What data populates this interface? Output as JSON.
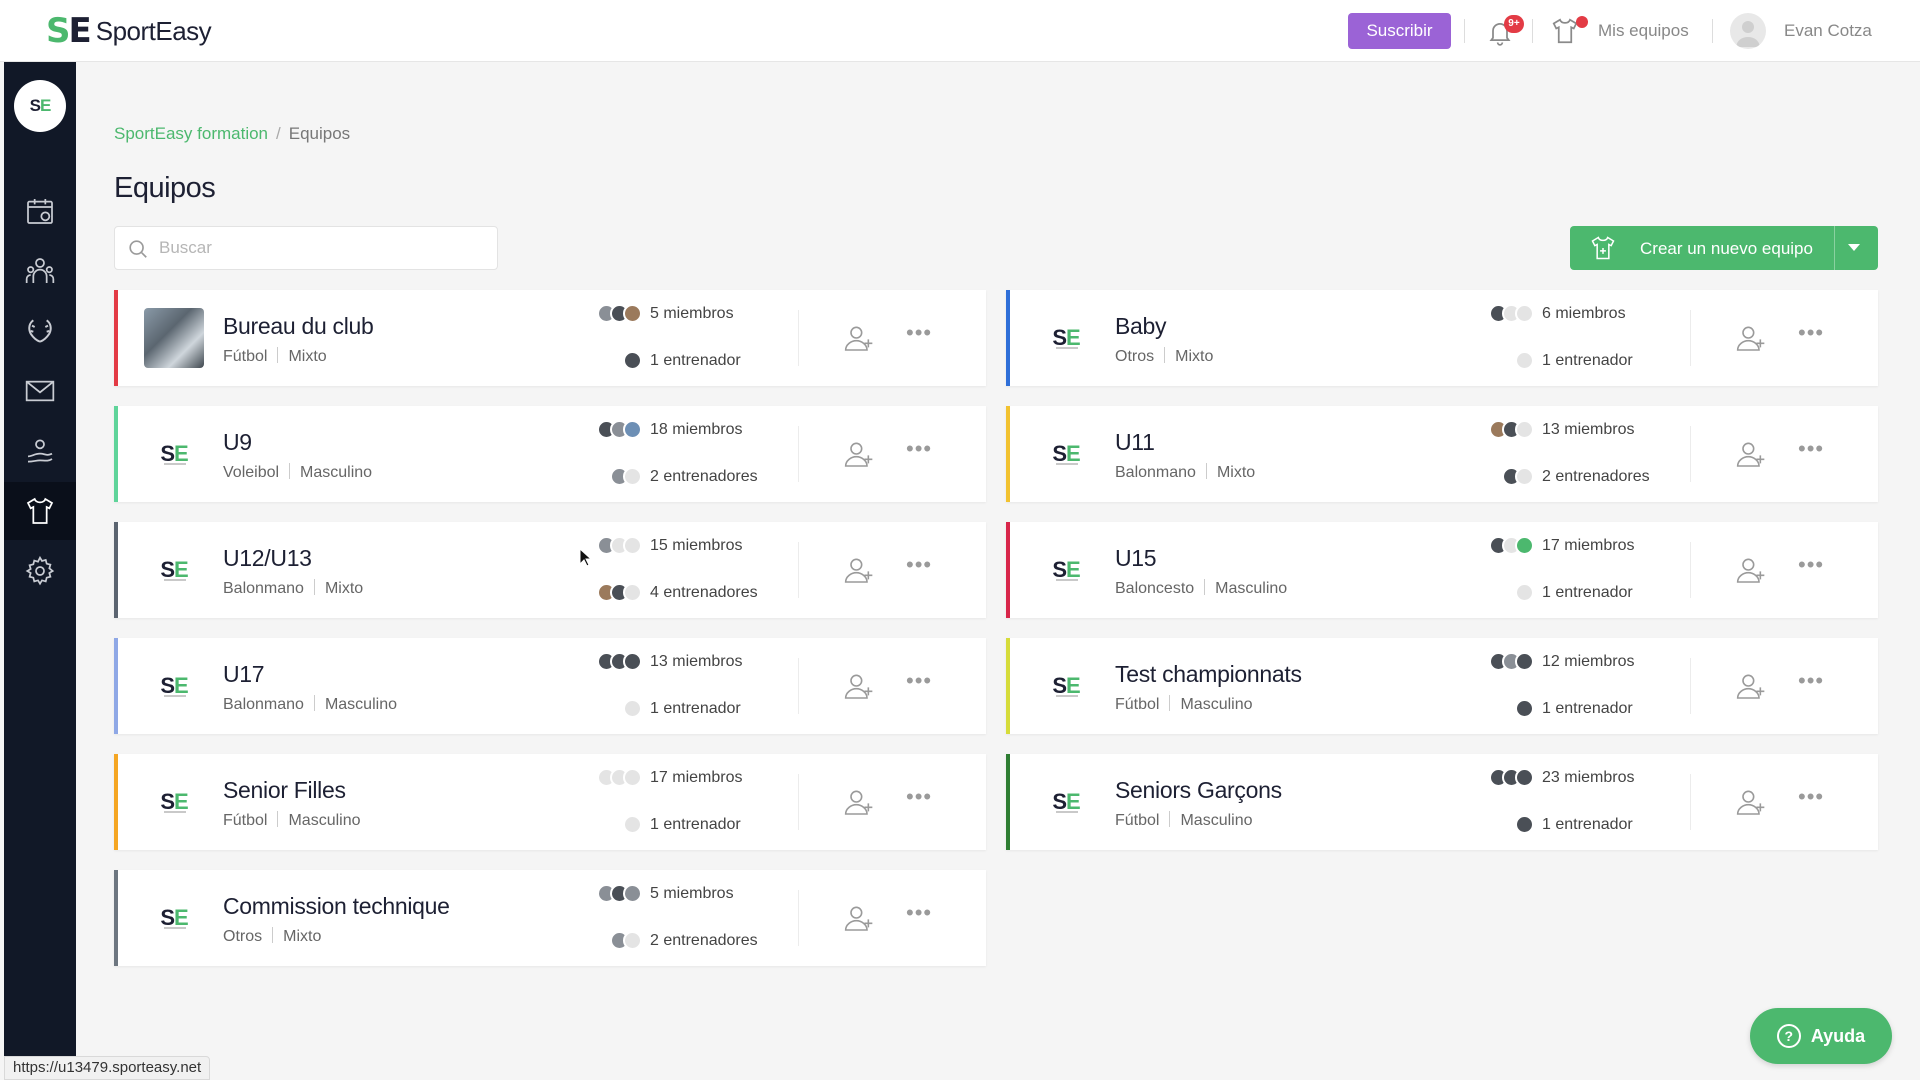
{
  "header": {
    "brand": "SportEasy",
    "subscribe_label": "Suscribir",
    "notifications_badge": "9+",
    "my_teams_label": "Mis equipos",
    "user_name": "Evan Cotza"
  },
  "sidebar": {
    "items": [
      {
        "icon": "calendar-icon"
      },
      {
        "icon": "members-icon"
      },
      {
        "icon": "trophy-icon"
      },
      {
        "icon": "mail-icon"
      },
      {
        "icon": "hand-heart-icon"
      },
      {
        "icon": "jersey-icon",
        "active": true
      },
      {
        "icon": "gear-icon"
      }
    ]
  },
  "breadcrumb": {
    "link": "SportEasy formation",
    "separator": "/",
    "current": "Equipos"
  },
  "page_title": "Equipos",
  "search": {
    "placeholder": "Buscar",
    "value": ""
  },
  "create_button_label": "Crear un nuevo equipo",
  "teams": [
    {
      "name": "Bureau du club",
      "sport": "Fútbol",
      "gender": "Mixto",
      "members": "5 miembros",
      "coaches": "1 entrenador",
      "color": "#e33b45"
    },
    {
      "name": "Baby",
      "sport": "Otros",
      "gender": "Mixto",
      "members": "6 miembros",
      "coaches": "1 entrenador",
      "color": "#2f6fd8"
    },
    {
      "name": "U9",
      "sport": "Voleibol",
      "gender": "Masculino",
      "members": "18 miembros",
      "coaches": "2 entrenadores",
      "color": "#5fd49a"
    },
    {
      "name": "U11",
      "sport": "Balonmano",
      "gender": "Mixto",
      "members": "13 miembros",
      "coaches": "2 entrenadores",
      "color": "#f2c230"
    },
    {
      "name": "U12/U13",
      "sport": "Balonmano",
      "gender": "Mixto",
      "members": "15 miembros",
      "coaches": "4 entrenadores",
      "color": "#5b6470"
    },
    {
      "name": "U15",
      "sport": "Baloncesto",
      "gender": "Masculino",
      "members": "17 miembros",
      "coaches": "1 entrenador",
      "color": "#d8264a"
    },
    {
      "name": "U17",
      "sport": "Balonmano",
      "gender": "Masculino",
      "members": "13 miembros",
      "coaches": "1 entrenador",
      "color": "#8fa8e6"
    },
    {
      "name": "Test championnats",
      "sport": "Fútbol",
      "gender": "Masculino",
      "members": "12 miembros",
      "coaches": "1 entrenador",
      "color": "#d6dc3a"
    },
    {
      "name": "Senior Filles",
      "sport": "Fútbol",
      "gender": "Masculino",
      "members": "17 miembros",
      "coaches": "1 entrenador",
      "color": "#f5a623"
    },
    {
      "name": "Seniors Garçons",
      "sport": "Fútbol",
      "gender": "Masculino",
      "members": "23 miembros",
      "coaches": "1 entrenador",
      "color": "#2e7d32"
    },
    {
      "name": "Commission technique",
      "sport": "Otros",
      "gender": "Mixto",
      "members": "5 miembros",
      "coaches": "2 entrenadores",
      "color": "#6d7680"
    }
  ],
  "status_url": "https://u13479.sporteasy.net",
  "help_label": "Ayuda",
  "colors": {
    "brand_green": "#4cb86e",
    "subscribe_purple": "#9b63d6",
    "sidebar": "#111827"
  }
}
